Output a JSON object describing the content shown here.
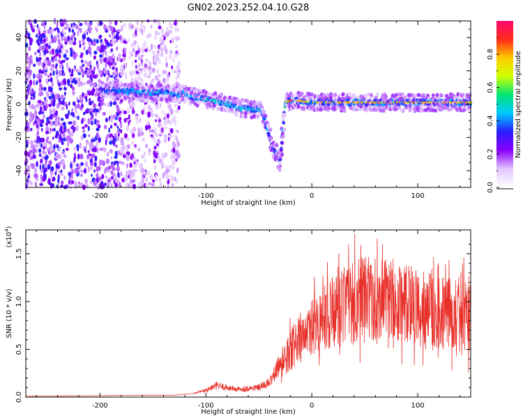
{
  "title": "GN02.2023.252.04.10.G28",
  "chart_data": [
    {
      "type": "heatmap",
      "xlabel": "Height of straight line (km)",
      "ylabel": "Frequency (Hz)",
      "xlim": [
        -270,
        150
      ],
      "ylim": [
        -50,
        50
      ],
      "xticks": [
        -200,
        -100,
        0,
        100
      ],
      "xtick_labels": [
        "-200",
        "-100",
        "0",
        "100"
      ],
      "yticks": [
        -40,
        -20,
        0,
        20,
        40
      ],
      "ytick_labels": [
        "-40",
        "-20",
        "0",
        "20",
        "40"
      ],
      "colorbar": {
        "label": "Normalized spectral amplitude",
        "range": [
          0,
          1
        ],
        "ticks": [
          0.0,
          0.2,
          0.4,
          0.6,
          0.8
        ],
        "tick_labels": [
          "0.0",
          "0.2",
          "0.4",
          "0.6",
          "0.8"
        ],
        "colors": [
          "#ffffff",
          "#e3c6ff",
          "#8a00ff",
          "#2a1cff",
          "#00c8ff",
          "#00e676",
          "#ccff00",
          "#ffcc00",
          "#ff2a1a",
          "#ff0a6e"
        ]
      },
      "signal_track": {
        "x": [
          -200,
          -180,
          -160,
          -140,
          -120,
          -110,
          -100,
          -90,
          -80,
          -70,
          -60,
          -50,
          -45,
          -40,
          -35,
          -30,
          -25,
          -20,
          -10,
          0,
          20,
          50,
          80,
          100,
          120,
          150
        ],
        "y": [
          9,
          8,
          7,
          7,
          6,
          4,
          3,
          2,
          0,
          -2,
          -3,
          -3,
          -8,
          -20,
          -28,
          -35,
          1,
          2,
          2,
          1,
          1,
          1,
          1,
          1,
          1,
          1
        ],
        "amplitude": [
          0.3,
          0.4,
          0.5,
          0.5,
          0.4,
          0.5,
          0.55,
          0.55,
          0.5,
          0.5,
          0.5,
          0.5,
          0.4,
          0.35,
          0.25,
          0.15,
          0.6,
          0.9,
          0.85,
          0.85,
          0.85,
          0.85,
          0.9,
          0.85,
          0.85,
          0.85
        ]
      },
      "noise_region": [
        -270,
        -125
      ]
    },
    {
      "type": "line",
      "xlabel": "Height of straight line (km)",
      "ylabel": "SNR (10 * v/v)",
      "y_multiplier": "(x10",
      "y_multiplier_exp": "4",
      "y_multiplier_close": ")",
      "xlim": [
        -270,
        150
      ],
      "ylim": [
        0,
        1.75
      ],
      "xticks": [
        -200,
        -100,
        0,
        100
      ],
      "xtick_labels": [
        "-200",
        "-100",
        "0",
        "100"
      ],
      "yticks": [
        0.0,
        0.5,
        1.0,
        1.5
      ],
      "ytick_labels": [
        "0.0",
        "0.5",
        "1.0",
        "1.5"
      ],
      "color": "#e8302a",
      "envelope": {
        "x": [
          -270,
          -200,
          -160,
          -130,
          -110,
          -100,
          -90,
          -80,
          -70,
          -60,
          -50,
          -40,
          -35,
          -30,
          -25,
          -20,
          -15,
          -10,
          0,
          10,
          20,
          30,
          40,
          50,
          60,
          70,
          80,
          90,
          100,
          110,
          120,
          130,
          140,
          150
        ],
        "y": [
          0.01,
          0.015,
          0.02,
          0.02,
          0.04,
          0.07,
          0.12,
          0.1,
          0.08,
          0.09,
          0.1,
          0.15,
          0.25,
          0.35,
          0.42,
          0.5,
          0.58,
          0.62,
          0.7,
          0.78,
          0.88,
          0.95,
          1.0,
          1.02,
          1.0,
          1.0,
          1.02,
          0.98,
          0.95,
          0.9,
          0.88,
          0.86,
          0.85,
          0.85
        ]
      },
      "peak_y": 1.75
    }
  ]
}
